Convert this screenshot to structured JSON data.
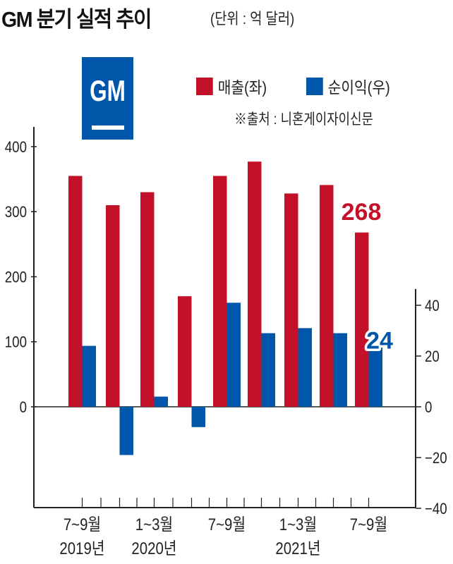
{
  "header": {
    "title": "GM 분기 실적 추이",
    "unit": "(단위 : 억 달러)"
  },
  "logo": {
    "text": "GM"
  },
  "source": "※출처 : 니혼게이자이신문",
  "colors": {
    "revenue": "#c4112a",
    "profit": "#0056a8"
  },
  "chart_data": {
    "type": "bar",
    "title": "GM 분기 실적 추이",
    "quarters": [
      "2019 Q3",
      "2019 Q4",
      "2020 Q1",
      "2020 Q2",
      "2020 Q3",
      "2020 Q4",
      "2021 Q1",
      "2021 Q2",
      "2021 Q3"
    ],
    "x_tick_labels": [
      {
        "q": 0,
        "line1": "7~9월",
        "line2": "2019년"
      },
      {
        "q": 2,
        "line1": "1~3월",
        "line2": "2020년"
      },
      {
        "q": 4,
        "line1": "7~9월",
        "line2": ""
      },
      {
        "q": 6,
        "line1": "1~3월",
        "line2": "2021년"
      },
      {
        "q": 8,
        "line1": "7~9월",
        "line2": ""
      }
    ],
    "series": [
      {
        "name": "매출(좌)",
        "axis": "left",
        "values": [
          355,
          310,
          330,
          170,
          355,
          377,
          328,
          341,
          268
        ]
      },
      {
        "name": "순이익(우)",
        "axis": "right",
        "values": [
          24,
          -19,
          4,
          -8,
          41,
          29,
          31,
          29,
          24
        ]
      }
    ],
    "left_axis": {
      "ylim": [
        -155,
        400
      ],
      "ticks": [
        0,
        100,
        200,
        300,
        400
      ]
    },
    "right_axis": {
      "ylim": [
        -40,
        40
      ],
      "ticks": [
        40,
        20,
        0,
        -20,
        -40
      ],
      "tick_labels": [
        "40",
        "20",
        "0",
        "−20",
        "−40"
      ]
    },
    "annotations": [
      {
        "series": 0,
        "index": 8,
        "text": "268"
      },
      {
        "series": 1,
        "index": 8,
        "text": "24"
      }
    ],
    "legend": "top-right"
  }
}
